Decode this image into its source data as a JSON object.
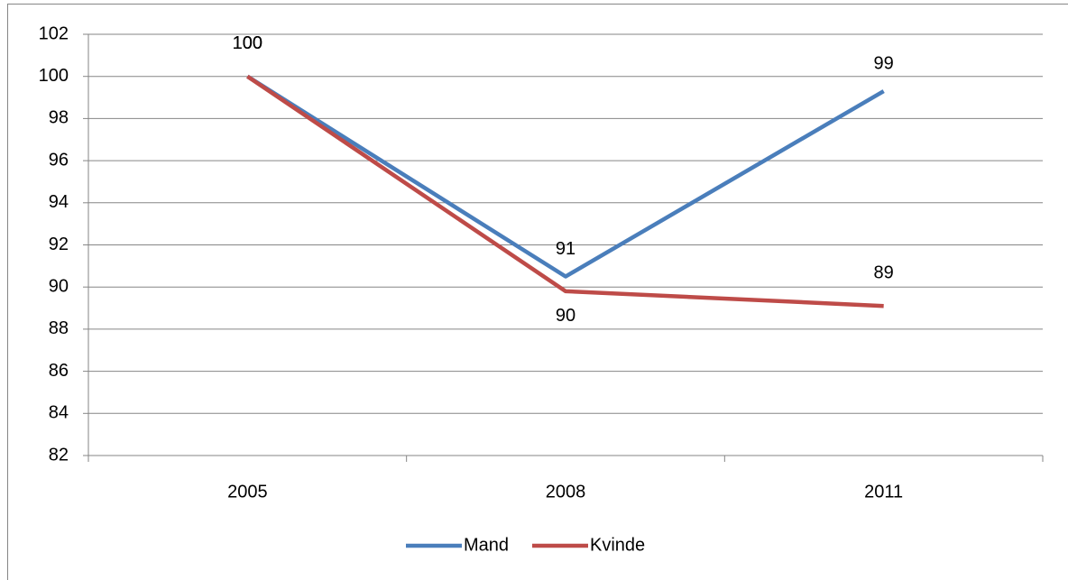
{
  "chart_data": {
    "type": "line",
    "categories": [
      "2005",
      "2008",
      "2011"
    ],
    "series": [
      {
        "name": "Mand",
        "color": "#4a7ebb",
        "values": [
          100,
          90.5,
          99.3
        ],
        "value_labels": [
          "100",
          "91",
          "99"
        ]
      },
      {
        "name": "Kvinde",
        "color": "#be4b48",
        "values": [
          100,
          89.8,
          89.1
        ],
        "value_labels": [
          "100",
          "90",
          "89"
        ]
      }
    ],
    "ylim": [
      82,
      102
    ],
    "yticks": [
      82,
      84,
      86,
      88,
      90,
      92,
      94,
      96,
      98,
      100,
      102
    ],
    "grid": true,
    "legend": "bottom"
  }
}
